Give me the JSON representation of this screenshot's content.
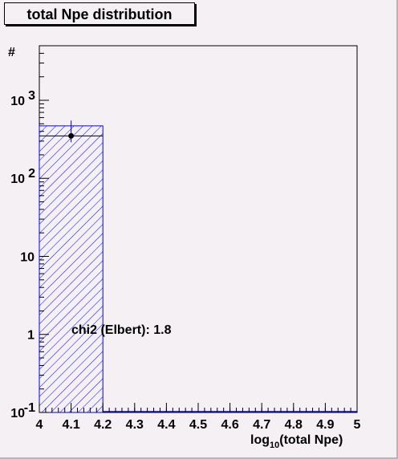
{
  "chart_data": {
    "type": "bar",
    "title": "total Npe distribution",
    "ylabel": "#",
    "xlabel_main": "log",
    "xlabel_sub": "10",
    "xlabel_rest": "(total Npe)",
    "xlim": [
      4,
      5
    ],
    "ylim": [
      0.1,
      5000
    ],
    "yscale": "log",
    "grid": false,
    "x_ticks": [
      "4",
      "4.1",
      "4.2",
      "4.3",
      "4.4",
      "4.5",
      "4.6",
      "4.7",
      "4.8",
      "4.9",
      "5"
    ],
    "y_ticks": [
      {
        "value": 0.1,
        "base": "10",
        "exp": "-1"
      },
      {
        "value": 1,
        "base": "1",
        "exp": ""
      },
      {
        "value": 10,
        "base": "10",
        "exp": ""
      },
      {
        "value": 100,
        "base": "10",
        "exp": "2"
      },
      {
        "value": 1000,
        "base": "10",
        "exp": "3"
      }
    ],
    "histogram": {
      "bins": [
        [
          4.0,
          4.2
        ]
      ],
      "values": [
        470
      ],
      "color": "#0000ff",
      "fill": "hatched"
    },
    "points": {
      "x": [
        4.1
      ],
      "y": [
        350
      ],
      "yerr_low": [
        290
      ],
      "yerr_high": [
        550
      ],
      "xerr": [
        0.1
      ],
      "color": "#000000"
    },
    "annotation": "chi2 (Elbert): 1.8"
  }
}
